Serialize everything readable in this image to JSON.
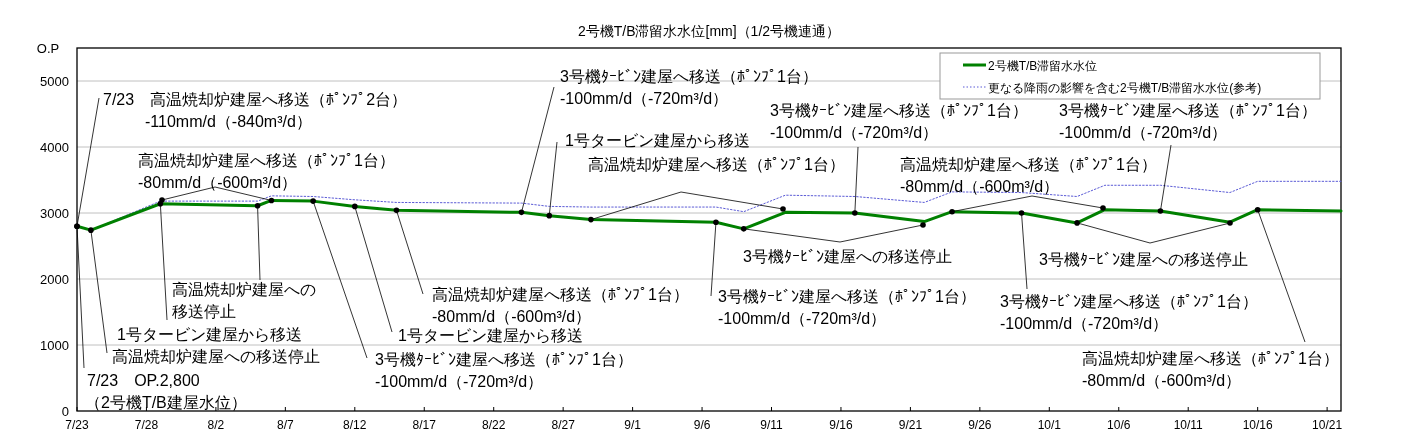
{
  "chart_data": {
    "type": "line",
    "title": "2号機T/B滞留水水位[mm]（1/2号機連通）",
    "ylabel": "O.P",
    "xlim": [
      "--07-23",
      "--10-22"
    ],
    "ylim": [
      0,
      5500
    ],
    "yticks": [
      0,
      1000,
      2000,
      3000,
      4000,
      5000
    ],
    "xticks": [
      {
        "value": "--07-23",
        "label": "7/23"
      },
      {
        "value": "--07-28",
        "label": "7/28"
      },
      {
        "value": "--08-02",
        "label": "8/2"
      },
      {
        "value": "--08-07",
        "label": "8/7"
      },
      {
        "value": "--08-12",
        "label": "8/12"
      },
      {
        "value": "--08-17",
        "label": "8/17"
      },
      {
        "value": "--08-22",
        "label": "8/22"
      },
      {
        "value": "--08-27",
        "label": "8/27"
      },
      {
        "value": "--09-01",
        "label": "9/1"
      },
      {
        "value": "--09-06",
        "label": "9/6"
      },
      {
        "value": "--09-11",
        "label": "9/11"
      },
      {
        "value": "--09-16",
        "label": "9/16"
      },
      {
        "value": "--09-21",
        "label": "9/21"
      },
      {
        "value": "--09-26",
        "label": "9/26"
      },
      {
        "value": "--10-01",
        "label": "10/1"
      },
      {
        "value": "--10-06",
        "label": "10/6"
      },
      {
        "value": "--10-11",
        "label": "10/11"
      },
      {
        "value": "--10-16",
        "label": "10/16"
      },
      {
        "value": "--10-21",
        "label": "10/21"
      }
    ],
    "grid": "y",
    "legend": "top right",
    "series": [
      {
        "name": "2号機T/B滞留水水位",
        "color": "#008000",
        "line_style": "solid",
        "x": [
          "--07-23",
          "--07-24",
          "--07-29",
          "--08-05",
          "--08-06",
          "--08-09",
          "--08-12",
          "--08-15",
          "--08-24",
          "--08-26",
          "--08-29",
          "--09-07",
          "--09-09",
          "--09-12",
          "--09-17",
          "--09-22",
          "--09-24",
          "--09-29",
          "--10-03",
          "--10-05",
          "--10-09",
          "--10-14",
          "--10-16",
          "--10-22"
        ],
        "values": [
          2800,
          2740,
          3140,
          3110,
          3190,
          3180,
          3100,
          3040,
          3010,
          2960,
          2900,
          2860,
          2760,
          3010,
          3000,
          2870,
          3020,
          3000,
          2850,
          3050,
          3030,
          2860,
          3050,
          3030
        ]
      },
      {
        "name": "更なる降雨の影響を含む2号機T/B滞留水水位(参考)",
        "color": "#5b5bd6",
        "line_style": "dotted",
        "x": [
          "--07-23",
          "--07-24",
          "--07-29",
          "--08-05",
          "--08-06",
          "--08-09",
          "--08-12",
          "--08-15",
          "--08-24",
          "--08-26",
          "--08-29",
          "--09-07",
          "--09-09",
          "--09-12",
          "--09-17",
          "--09-22",
          "--09-24",
          "--09-29",
          "--10-03",
          "--10-05",
          "--10-09",
          "--10-14",
          "--10-16",
          "--10-22"
        ],
        "values": [
          2800,
          2740,
          3180,
          3180,
          3260,
          3250,
          3200,
          3160,
          3150,
          3100,
          3090,
          3090,
          3020,
          3270,
          3250,
          3160,
          3320,
          3310,
          3250,
          3420,
          3420,
          3310,
          3480,
          3480
        ]
      }
    ],
    "annotations": [
      {
        "text": "7/23　高温焼却炉建屋へ移送（ﾎﾟﾝﾌﾟ2台）\n-110mm/d（-840m³/d）",
        "x": "--07-23",
        "y": 2800
      },
      {
        "text": "7/23　OP.2,800\n（2号機T/B建屋水位）",
        "x": "--07-23",
        "y": 2800
      },
      {
        "text": "高温焼却炉建屋への移送停止",
        "x": "--07-24",
        "y": 2740
      },
      {
        "text": "1号タービン建屋から移送",
        "x": "--07-29",
        "y": 3140
      },
      {
        "text": "高温焼却炉建屋へ移送（ﾎﾟﾝﾌﾟ1台）\n-80mm/d（-600m³/d）",
        "x": "--08-06",
        "y": 3190
      },
      {
        "text": "高温焼却炉建屋への移送停止",
        "x": "--08-05",
        "y": 3110
      },
      {
        "text": "3号機ﾀｰﾋﾞﾝ建屋へ移送（ﾎﾟﾝﾌﾟ1台）\n-100mm/d（-720m³/d）",
        "x": "--08-09",
        "y": 3180
      },
      {
        "text": "1号タービン建屋から移送",
        "x": "--08-12",
        "y": 3100
      },
      {
        "text": "高温焼却炉建屋へ移送（ﾎﾟﾝﾌﾟ1台）\n-80mm/d（-600m³/d）",
        "x": "--08-15",
        "y": 3040
      },
      {
        "text": "3号機ﾀｰﾋﾞﾝ建屋へ移送（ﾎﾟﾝﾌﾟ1台）\n-100mm/d（-720m³/d）",
        "x": "--08-24",
        "y": 3010
      },
      {
        "text": "1号タービン建屋から移送",
        "x": "--08-26",
        "y": 2960
      },
      {
        "text": "高温焼却炉建屋へ移送（ﾎﾟﾝﾌﾟ1台）",
        "x": "--08-29",
        "y": 2900
      },
      {
        "text": "3号機ﾀｰﾋﾞﾝ建屋へ移送（ﾎﾟﾝﾌﾟ1台）\n-100mm/d（-720m³/d）",
        "x": "--09-07",
        "y": 2860
      },
      {
        "text": "3号機ﾀｰﾋﾞﾝ建屋への移送停止",
        "x": "--09-09",
        "y": 2760
      },
      {
        "text": "3号機ﾀｰﾋﾞﾝ建屋へ移送（ﾎﾟﾝﾌﾟ1台）\n-100mm/d（-720m³/d）",
        "x": "--09-17",
        "y": 3000
      },
      {
        "text": "高温焼却炉建屋へ移送（ﾎﾟﾝﾌﾟ1台）\n-80mm/d（-600m³/d）",
        "x": "--09-24",
        "y": 3020
      },
      {
        "text": "3号機ﾀｰﾋﾞﾝ建屋へ移送（ﾎﾟﾝﾌﾟ1台）\n-100mm/d（-720m³/d）",
        "x": "--09-29",
        "y": 3000
      },
      {
        "text": "3号機ﾀｰﾋﾞﾝ建屋への移送停止",
        "x": "--10-03",
        "y": 2850
      },
      {
        "text": "3号機ﾀｰﾋﾞﾝ建屋へ移送（ﾎﾟﾝﾌﾟ1台）\n-100mm/d（-720m³/d）",
        "x": "--10-09",
        "y": 3030
      },
      {
        "text": "高温焼却炉建屋へ移送（ﾎﾟﾝﾌﾟ1台）\n-80mm/d（-600m³/d）",
        "x": "--10-16",
        "y": 3050
      }
    ]
  }
}
